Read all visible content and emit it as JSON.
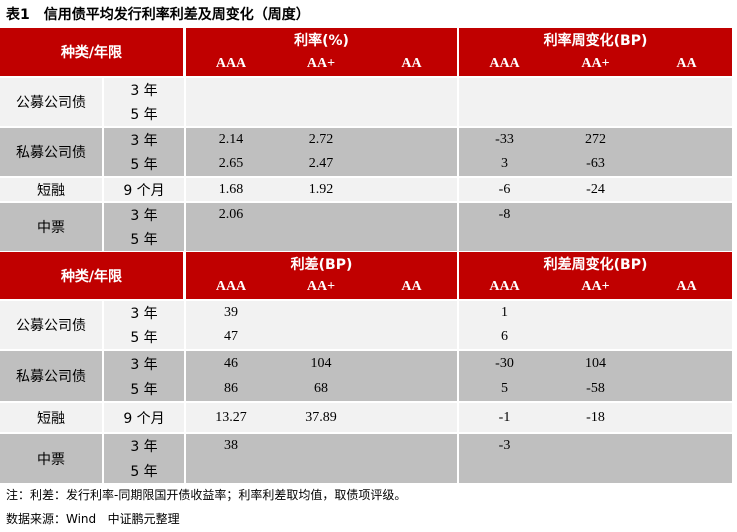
{
  "title": {
    "number": "表1",
    "text": "信用债平均发行利率利差及周变化（周度）"
  },
  "colors": {
    "header": "#C00000",
    "row_light": "#f2f2f2",
    "row_gray": "#bfbfbf"
  },
  "tables": [
    {
      "category_header": "种类/年限",
      "left_group": "利率(%)",
      "right_group": "利率周变化(BP)",
      "ratings": [
        "AAA",
        "AA+",
        "AA",
        "AAA",
        "AA+",
        "AA"
      ],
      "groups": [
        {
          "name": "公募公司债",
          "shade": "light",
          "terms": [
            {
              "term": "3 年",
              "values": [
                "",
                "",
                "",
                "",
                "",
                ""
              ]
            },
            {
              "term": "5 年",
              "values": [
                "",
                "",
                "",
                "",
                "",
                ""
              ]
            }
          ]
        },
        {
          "name": "私募公司债",
          "shade": "gray",
          "terms": [
            {
              "term": "3 年",
              "values": [
                "2.14",
                "2.72",
                "",
                "-33",
                "272",
                ""
              ]
            },
            {
              "term": "5 年",
              "values": [
                "2.65",
                "2.47",
                "",
                "3",
                "-63",
                ""
              ]
            }
          ]
        },
        {
          "name": "短融",
          "shade": "light",
          "terms": [
            {
              "term": "9 个月",
              "values": [
                "1.68",
                "1.92",
                "",
                "-6",
                "-24",
                ""
              ]
            }
          ]
        },
        {
          "name": "中票",
          "shade": "gray",
          "terms": [
            {
              "term": "3 年",
              "values": [
                "2.06",
                "",
                "",
                "-8",
                "",
                ""
              ]
            },
            {
              "term": "5 年",
              "values": [
                "",
                "",
                "",
                "",
                "",
                ""
              ]
            }
          ]
        }
      ]
    },
    {
      "category_header": "种类/年限",
      "left_group": "利差(BP)",
      "right_group": "利差周变化(BP)",
      "ratings": [
        "AAA",
        "AA+",
        "AA",
        "AAA",
        "AA+",
        "AA"
      ],
      "groups": [
        {
          "name": "公募公司债",
          "shade": "light",
          "terms": [
            {
              "term": "3 年",
              "values": [
                "39",
                "",
                "",
                "1",
                "",
                ""
              ]
            },
            {
              "term": "5 年",
              "values": [
                "47",
                "",
                "",
                "6",
                "",
                ""
              ]
            }
          ]
        },
        {
          "name": "私募公司债",
          "shade": "gray",
          "terms": [
            {
              "term": "3 年",
              "values": [
                "46",
                "104",
                "",
                "-30",
                "104",
                ""
              ]
            },
            {
              "term": "5 年",
              "values": [
                "86",
                "68",
                "",
                "5",
                "-58",
                ""
              ]
            }
          ]
        },
        {
          "name": "短融",
          "shade": "light",
          "terms": [
            {
              "term": "9 个月",
              "values": [
                "13.27",
                "37.89",
                "",
                "-1",
                "-18",
                ""
              ]
            }
          ]
        },
        {
          "name": "中票",
          "shade": "gray",
          "terms": [
            {
              "term": "3 年",
              "values": [
                "38",
                "",
                "",
                "-3",
                "",
                ""
              ]
            },
            {
              "term": "5 年",
              "values": [
                "",
                "",
                "",
                "",
                "",
                ""
              ]
            }
          ]
        }
      ]
    }
  ],
  "notes": {
    "note": "注：利差：发行利率-同期限国开债收益率；利率利差取均值，取债项评级。",
    "source": "数据来源：Wind   中证鹏元整理"
  }
}
